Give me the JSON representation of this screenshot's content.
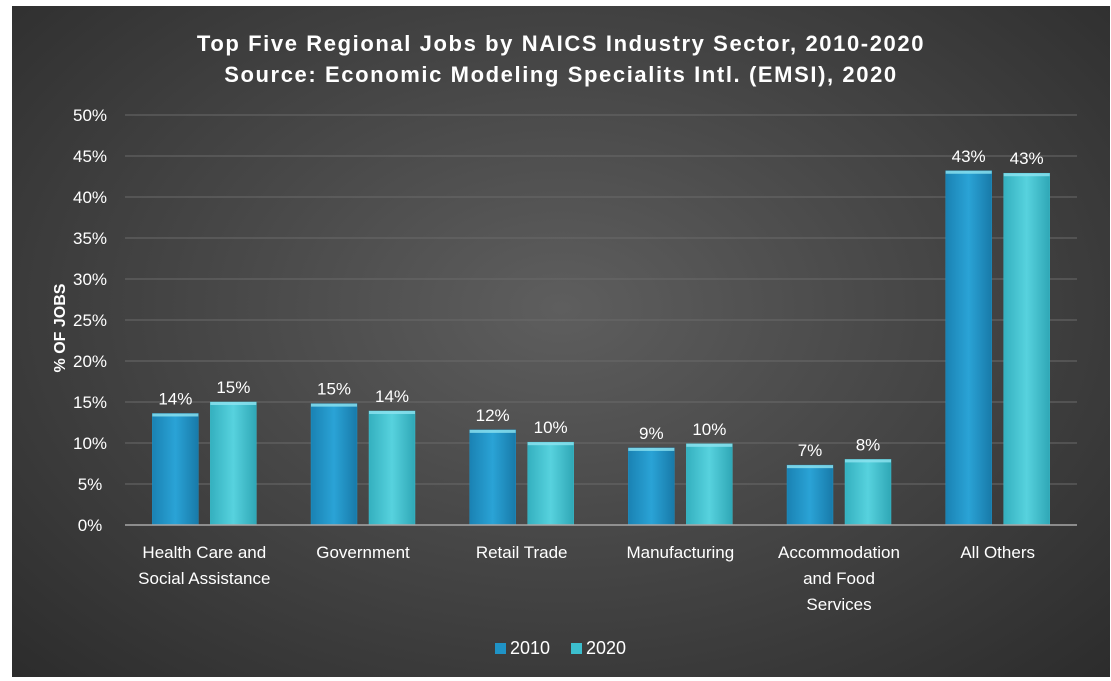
{
  "chart_data": {
    "type": "bar",
    "title": "Top Five Regional Jobs by NAICS Industry Sector, 2010-2020",
    "subtitle": "Source: Economic Modeling Specialits Intl. (EMSI), 2020",
    "xlabel": "",
    "ylabel": "% OF JOBS",
    "ylim": [
      0,
      50
    ],
    "yticks": [
      0,
      5,
      10,
      15,
      20,
      25,
      30,
      35,
      40,
      45,
      50
    ],
    "ytick_suffix": "%",
    "categories": [
      [
        "Health Care and",
        "Social Assistance"
      ],
      [
        "Government"
      ],
      [
        "Retail Trade"
      ],
      [
        "Manufacturing"
      ],
      [
        "Accommodation",
        "and Food",
        "Services"
      ],
      [
        "All Others"
      ]
    ],
    "series": [
      {
        "name": "2010",
        "values": [
          13.6,
          14.8,
          11.6,
          9.4,
          7.3,
          43.2
        ],
        "labels": [
          "14%",
          "15%",
          "12%",
          "9%",
          "7%",
          "43%"
        ],
        "color": "#1f93c6"
      },
      {
        "name": "2020",
        "values": [
          15.0,
          13.9,
          10.1,
          9.9,
          8.0,
          42.9
        ],
        "labels": [
          "15%",
          "14%",
          "10%",
          "10%",
          "8%",
          "43%"
        ],
        "color": "#3cbfce"
      }
    ],
    "grid": true,
    "legend": "bottom"
  }
}
